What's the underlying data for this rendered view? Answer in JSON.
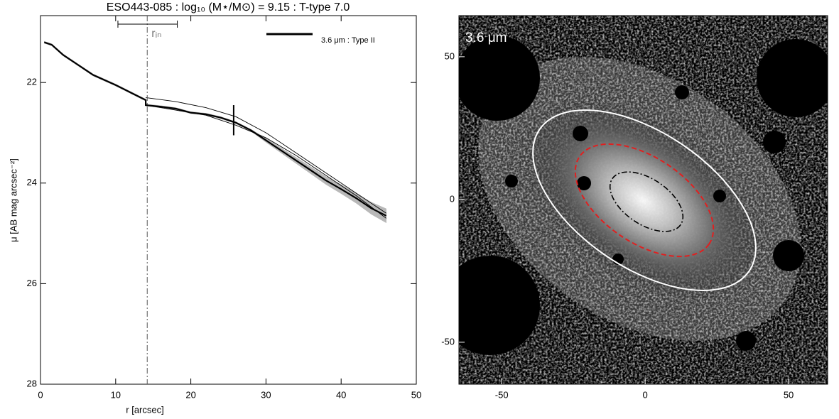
{
  "chart_data": [
    {
      "type": "line",
      "title": "ESO443-085 : log₁₀ (M⋆/M⊙) = 9.15 : T-type 7.0",
      "xlabel": "r [arcsec]",
      "ylabel": "μ [AB mag arcsec⁻²]",
      "xlim": [
        0,
        50
      ],
      "xticks": [
        0,
        10,
        20,
        30,
        40,
        50
      ],
      "ylim": [
        28,
        20.67
      ],
      "yticks": [
        22,
        24,
        26,
        28
      ],
      "legend": "top-right",
      "series": [
        {
          "name": "3.6 μm : Type II",
          "color": "#000000",
          "x": [
            0.5,
            1.5,
            3,
            5,
            7,
            10,
            12,
            14,
            14,
            16,
            18,
            20,
            22,
            24,
            26,
            28,
            30,
            32,
            34,
            36,
            38,
            40,
            42,
            44,
            46
          ],
          "values": [
            21.2,
            21.25,
            21.45,
            21.65,
            21.85,
            22.05,
            22.2,
            22.35,
            22.45,
            22.48,
            22.52,
            22.6,
            22.63,
            22.7,
            22.8,
            22.95,
            23.15,
            23.35,
            23.55,
            23.75,
            23.95,
            24.12,
            24.3,
            24.5,
            24.65
          ],
          "errors": [
            0.02,
            0.02,
            0.02,
            0.02,
            0.02,
            0.02,
            0.02,
            0.02,
            0.02,
            0.02,
            0.02,
            0.02,
            0.02,
            0.02,
            0.02,
            0.02,
            0.04,
            0.05,
            0.06,
            0.07,
            0.08,
            0.09,
            0.1,
            0.12,
            0.14
          ]
        }
      ],
      "fit_lines": [
        {
          "x": [
            14,
            18,
            22,
            26,
            30,
            34,
            38,
            42,
            46
          ],
          "values": [
            22.3,
            22.38,
            22.5,
            22.68,
            23.0,
            23.4,
            23.8,
            24.2,
            24.6
          ]
        },
        {
          "x": [
            14,
            18,
            22,
            26,
            30,
            34,
            38,
            42,
            46
          ],
          "values": [
            22.45,
            22.55,
            22.65,
            22.85,
            23.1,
            23.45,
            23.85,
            24.25,
            24.7
          ]
        }
      ],
      "break": {
        "x": 25.7,
        "range": [
          22.45,
          23.05
        ]
      },
      "r_in": {
        "x": 14.2,
        "label": "rᵢₙ",
        "range": [
          10.3,
          18.2
        ]
      }
    },
    {
      "type": "image",
      "label": "3.6 μm",
      "xlim": [
        -64.9,
        63.6
      ],
      "xticks": [
        -50,
        0,
        50
      ],
      "ylim": [
        -64.7,
        64.4
      ],
      "yticks": [
        -50,
        0,
        50
      ]
    }
  ]
}
